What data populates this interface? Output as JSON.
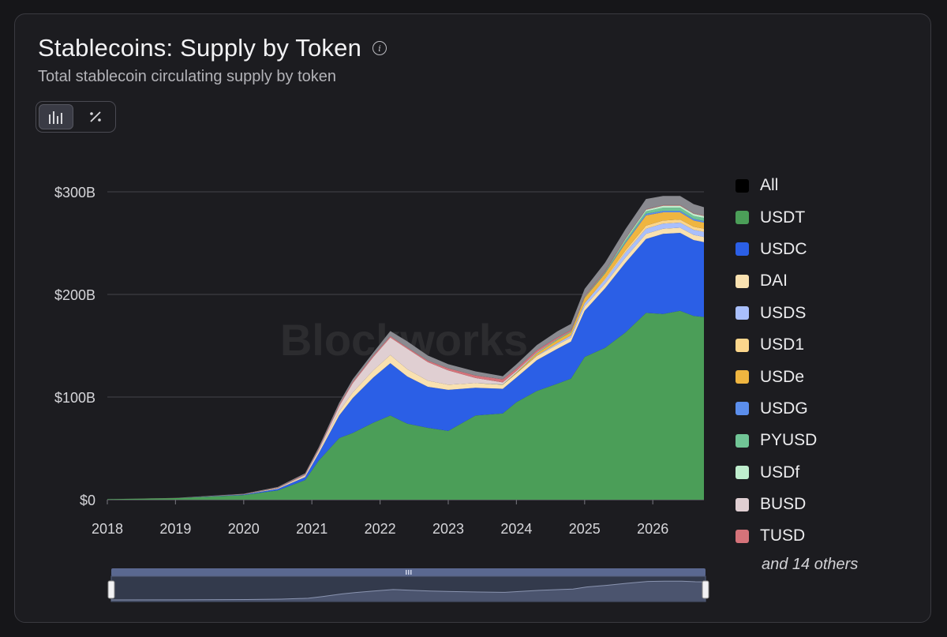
{
  "header": {
    "title": "Stablecoins: Supply by Token",
    "subtitle": "Total stablecoin circulating supply by token"
  },
  "view_toggle": {
    "options": [
      {
        "icon": "bar-chart-icon",
        "glyph": "ıılı",
        "active": true
      },
      {
        "icon": "percent-icon",
        "glyph": "⁒",
        "active": false
      }
    ]
  },
  "watermark": "Blockworks",
  "legend": {
    "items": [
      {
        "label": "All",
        "color": "#000000"
      },
      {
        "label": "USDT",
        "color": "#4b9e58"
      },
      {
        "label": "USDC",
        "color": "#2b5fe6"
      },
      {
        "label": "DAI",
        "color": "#f9e1b0"
      },
      {
        "label": "USDS",
        "color": "#a9bffc"
      },
      {
        "label": "USD1",
        "color": "#fcd68c"
      },
      {
        "label": "USDe",
        "color": "#efb540"
      },
      {
        "label": "USDG",
        "color": "#5b8eec"
      },
      {
        "label": "PYUSD",
        "color": "#71c596"
      },
      {
        "label": "USDf",
        "color": "#bfedcd"
      },
      {
        "label": "BUSD",
        "color": "#e0cfd2"
      },
      {
        "label": "TUSD",
        "color": "#d5737a"
      }
    ],
    "more": "and 14 others"
  },
  "chart_data": {
    "type": "area",
    "stacked": true,
    "ylim": [
      0,
      300
    ],
    "yticks": [
      {
        "value": 0,
        "label": "$0"
      },
      {
        "value": 100,
        "label": "$100B"
      },
      {
        "value": 200,
        "label": "$200B"
      },
      {
        "value": 300,
        "label": "$300B"
      }
    ],
    "xlim": [
      2018,
      2026.75
    ],
    "xticks": [
      2018,
      2019,
      2020,
      2021,
      2022,
      2023,
      2024,
      2025,
      2026
    ],
    "x": [
      2018.0,
      2019.0,
      2020.0,
      2020.5,
      2020.9,
      2021.1,
      2021.4,
      2021.6,
      2021.9,
      2022.15,
      2022.4,
      2022.7,
      2023.0,
      2023.4,
      2023.8,
      2024.0,
      2024.3,
      2024.6,
      2024.8,
      2025.0,
      2025.3,
      2025.6,
      2025.9,
      2026.15,
      2026.4,
      2026.6,
      2026.75
    ],
    "series": [
      {
        "name": "USDT",
        "color": "#4b9e58",
        "values": [
          0.5,
          1.5,
          4.5,
          9,
          19,
          38,
          60,
          65,
          75,
          82,
          74,
          70,
          67,
          82,
          84,
          95,
          106,
          113,
          118,
          139,
          148,
          163,
          182,
          181,
          184,
          179,
          178
        ]
      },
      {
        "name": "USDC",
        "color": "#2b5fe6",
        "values": [
          0,
          0,
          0.5,
          1.5,
          3,
          7,
          22,
          34,
          44,
          51,
          46,
          40,
          40,
          27,
          24,
          24,
          30,
          34,
          36,
          45,
          58,
          68,
          72,
          78,
          76,
          74,
          73
        ]
      },
      {
        "name": "DAI",
        "color": "#f9e1b0",
        "values": [
          0,
          0,
          0.2,
          0.6,
          1.2,
          2,
          4,
          5.5,
          7,
          8,
          7,
          6,
          5,
          4.5,
          4,
          4,
          4,
          4,
          4,
          4.5,
          4.5,
          5,
          5,
          5,
          5,
          5,
          5
        ]
      },
      {
        "name": "USDS",
        "color": "#a9bffc",
        "values": [
          0,
          0,
          0,
          0,
          0,
          0,
          0,
          0,
          0,
          0,
          0,
          0,
          0,
          0,
          0,
          0,
          0.5,
          1.5,
          2,
          3,
          4,
          5,
          5,
          5,
          5,
          5,
          5
        ]
      },
      {
        "name": "USD1",
        "color": "#fcd68c",
        "values": [
          0,
          0,
          0,
          0,
          0,
          0,
          0,
          0,
          0,
          0,
          0,
          0,
          0,
          0,
          0,
          0,
          0,
          0,
          0,
          0,
          1,
          2,
          3,
          3,
          3,
          3,
          3
        ]
      },
      {
        "name": "USDe",
        "color": "#efb540",
        "values": [
          0,
          0,
          0,
          0,
          0,
          0,
          0,
          0,
          0,
          0,
          0,
          0,
          0,
          0,
          0,
          0.5,
          2,
          3,
          3,
          5,
          5,
          7,
          10,
          8,
          7,
          6,
          6
        ]
      },
      {
        "name": "USDG",
        "color": "#5b8eec",
        "values": [
          0,
          0,
          0,
          0,
          0,
          0,
          0,
          0,
          0,
          0,
          0,
          0,
          0,
          0,
          0,
          0,
          0,
          0,
          0,
          0,
          0.5,
          1,
          1.5,
          1.5,
          1.5,
          1.5,
          1.5
        ]
      },
      {
        "name": "PYUSD",
        "color": "#71c596",
        "values": [
          0,
          0,
          0,
          0,
          0,
          0,
          0,
          0,
          0,
          0,
          0,
          0,
          0,
          0,
          0.3,
          0.4,
          0.5,
          0.8,
          0.8,
          0.8,
          1,
          2,
          2.5,
          3,
          3,
          3,
          3
        ]
      },
      {
        "name": "USDf",
        "color": "#bfedcd",
        "values": [
          0,
          0,
          0,
          0,
          0,
          0,
          0,
          0,
          0,
          0,
          0,
          0,
          0,
          0,
          0,
          0,
          0,
          0,
          0,
          0,
          0,
          1,
          1.5,
          2,
          2,
          2,
          2
        ]
      },
      {
        "name": "BUSD",
        "color": "#e0cfd2",
        "values": [
          0,
          0,
          0.1,
          0.3,
          0.8,
          1.5,
          5,
          9,
          13,
          17,
          20,
          18,
          14,
          5,
          2,
          1.5,
          0.7,
          0.3,
          0.2,
          0.1,
          0.1,
          0,
          0,
          0,
          0,
          0,
          0
        ]
      },
      {
        "name": "TUSD",
        "color": "#d5737a",
        "values": [
          0,
          0.1,
          0.2,
          0.4,
          0.7,
          1,
          1.4,
          1.4,
          1.4,
          1.3,
          1.2,
          1.5,
          2,
          2.5,
          3,
          2.5,
          2,
          1.5,
          1.2,
          1,
          0.8,
          0.6,
          0.5,
          0.5,
          0.5,
          0.5,
          0.5
        ]
      },
      {
        "name": "and 14 others",
        "color": "#8a8a90",
        "values": [
          0,
          0.1,
          0.3,
          0.6,
          1,
          1.5,
          2,
          2.5,
          3,
          5,
          6,
          5,
          4,
          4,
          3,
          4,
          5,
          6,
          6,
          7,
          8,
          9,
          10,
          9,
          9,
          9,
          8
        ]
      }
    ]
  }
}
